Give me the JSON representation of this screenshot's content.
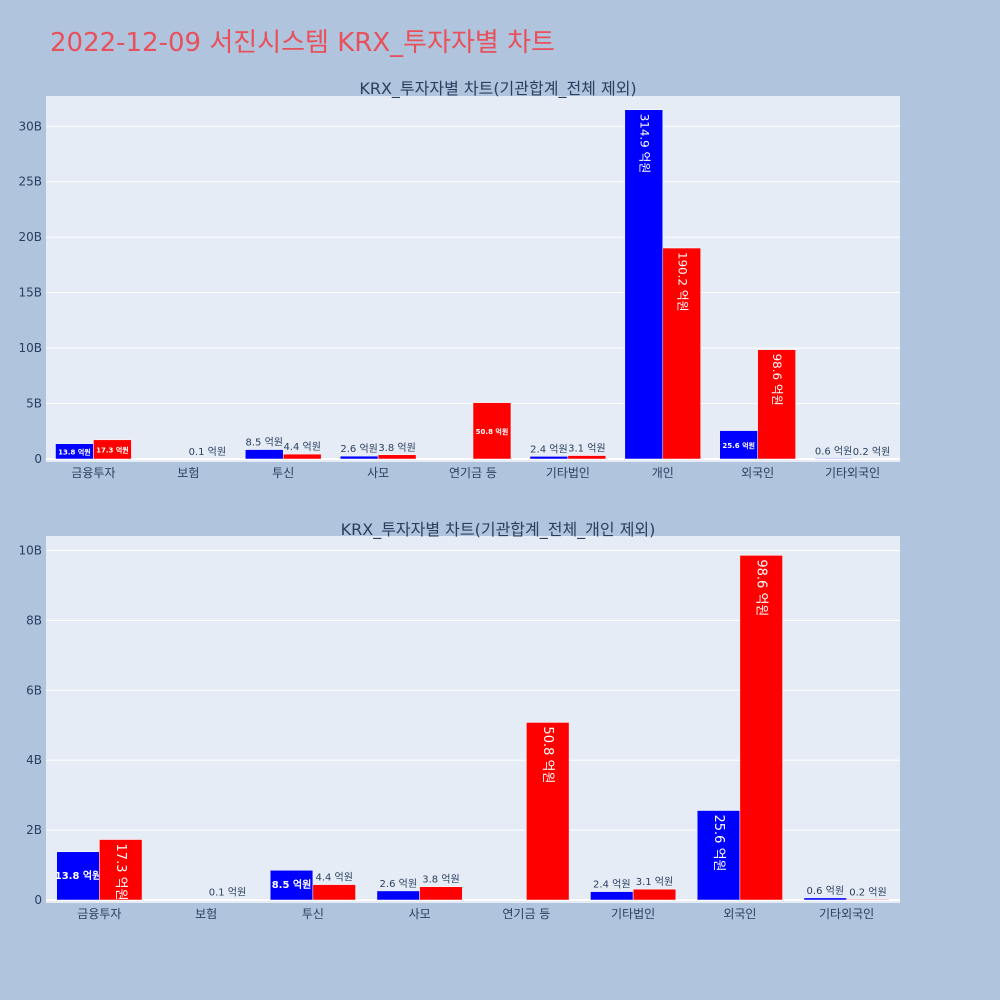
{
  "page_title": "2022-12-09 서진시스템 KRX_투자자별 차트",
  "colors": {
    "buy": "#0000ff",
    "sell": "#ff0000",
    "plot_bg": "#e5ecf6",
    "page_bg": "#b0c4de",
    "title": "#e8505b"
  },
  "chart_data": [
    {
      "type": "bar",
      "title": "KRX_투자자별 차트(기관합계_전체 제외)",
      "categories": [
        "금융투자",
        "보험",
        "투신",
        "사모",
        "연기금 등",
        "기타법인",
        "개인",
        "외국인",
        "기타외국인"
      ],
      "series": [
        {
          "values": [
            1380000000,
            0,
            850000000,
            260000000,
            0,
            240000000,
            31490000000,
            2560000000,
            60000000
          ],
          "labels": [
            "13.8 억원",
            "",
            "8.5 억원",
            "2.6 억원",
            "",
            "2.4 억원",
            "314.9 억원",
            "25.6 억원",
            "0.6 억원"
          ]
        },
        {
          "values": [
            1730000000,
            10000000,
            440000000,
            380000000,
            5080000000,
            310000000,
            19020000000,
            9860000000,
            20000000
          ],
          "labels": [
            "17.3 억원",
            "0.1 억원",
            "4.4 억원",
            "3.8 억원",
            "50.8 억원",
            "3.1 억원",
            "190.2 억원",
            "98.6 억원",
            "0.2 억원"
          ]
        }
      ],
      "yticks": [
        "0",
        "5B",
        "10B",
        "15B",
        "20B",
        "25B",
        "30B"
      ],
      "ylim": [
        0,
        33000000000
      ],
      "grid": true,
      "legend": "none"
    },
    {
      "type": "bar",
      "title": "KRX_투자자별 차트(기관합계_전체_개인 제외)",
      "categories": [
        "금융투자",
        "보험",
        "투신",
        "사모",
        "연기금 등",
        "기타법인",
        "외국인",
        "기타외국인"
      ],
      "series": [
        {
          "values": [
            1380000000,
            0,
            850000000,
            260000000,
            0,
            240000000,
            2560000000,
            60000000
          ],
          "labels": [
            "13.8 억원",
            "",
            "8.5 억원",
            "2.6 억원",
            "",
            "2.4 억원",
            "25.6 억원",
            "0.6 억원"
          ]
        },
        {
          "values": [
            1730000000,
            10000000,
            440000000,
            380000000,
            5080000000,
            310000000,
            9860000000,
            20000000
          ],
          "labels": [
            "17.3 억원",
            "0.1 억원",
            "4.4 억원",
            "3.8 억원",
            "50.8 억원",
            "3.1 억원",
            "98.6 억원",
            "0.2 억원"
          ]
        }
      ],
      "yticks": [
        "0",
        "2B",
        "4B",
        "6B",
        "8B",
        "10B"
      ],
      "ylim": [
        0,
        10500000000
      ],
      "grid": true,
      "legend": "none"
    }
  ]
}
